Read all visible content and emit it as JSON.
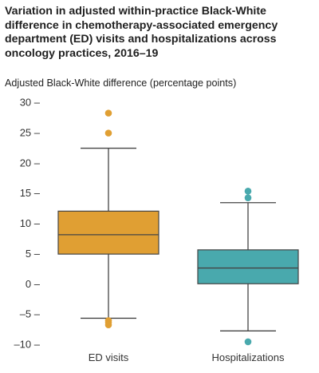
{
  "chart_data": {
    "type": "boxplot",
    "title": "Variation in adjusted within-practice Black-White difference in chemotherapy-associated emergency department (ED) visits and hospitalizations across oncology practices, 2016–19",
    "ylabel": "Adjusted Black-White difference (percentage points)",
    "xlabel": "",
    "ylim": [
      -10,
      30
    ],
    "yticks": [
      30,
      25,
      20,
      15,
      10,
      5,
      0,
      -5,
      -10
    ],
    "ytick_labels": [
      "30 –",
      "25 –",
      "20 –",
      "15 –",
      "10 –",
      "5 –",
      "0 –",
      "–5 –",
      "–10 –"
    ],
    "categories": [
      "ED visits",
      "Hospitalizations"
    ],
    "boxes": [
      {
        "name": "ED visits",
        "color": "#E09F33",
        "whisker_low": -5.7,
        "q1": 4.9,
        "median": 8.1,
        "q3": 12.0,
        "whisker_high": 22.4,
        "outliers": [
          28.2,
          24.9,
          -6.1,
          -6.4,
          -6.8
        ]
      },
      {
        "name": "Hospitalizations",
        "color": "#49A9AD",
        "whisker_low": -7.8,
        "q1": 0.0,
        "median": 2.6,
        "q3": 5.6,
        "whisker_high": 13.4,
        "outliers": [
          15.3,
          14.2,
          -9.6
        ]
      }
    ],
    "grid": false,
    "legend": "none"
  }
}
